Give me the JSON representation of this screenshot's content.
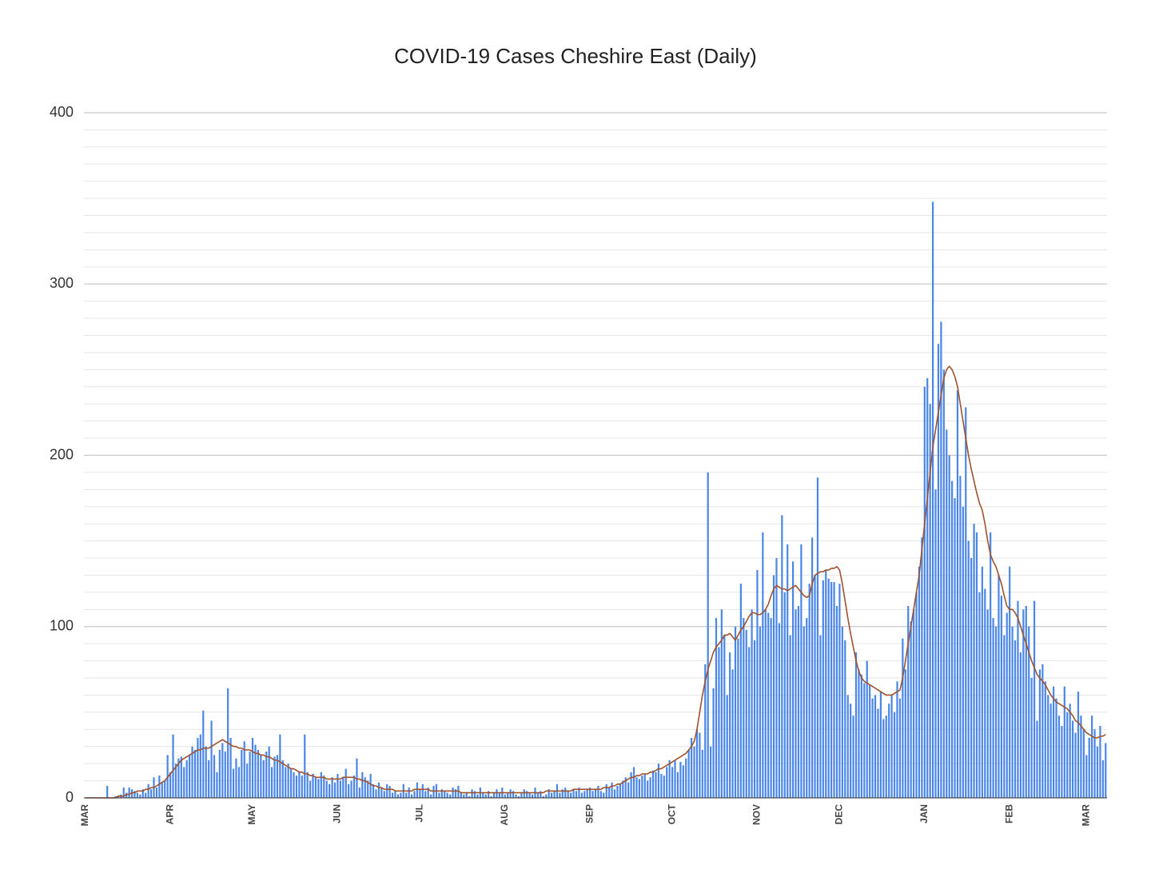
{
  "chart_data": {
    "type": "bar",
    "title": "COVID-19 Cases Cheshire East (Daily)",
    "categories": [
      "MAR",
      null,
      null,
      null,
      null,
      null,
      null,
      null,
      null,
      null,
      null,
      null,
      null,
      null,
      null,
      null,
      null,
      null,
      null,
      null,
      null,
      null,
      null,
      null,
      null,
      null,
      null,
      null,
      null,
      null,
      null,
      "APR",
      null,
      null,
      null,
      null,
      null,
      null,
      null,
      null,
      null,
      null,
      null,
      null,
      null,
      null,
      null,
      null,
      null,
      null,
      null,
      null,
      null,
      null,
      null,
      null,
      null,
      null,
      null,
      null,
      null,
      "MAY",
      null,
      null,
      null,
      null,
      null,
      null,
      null,
      null,
      null,
      null,
      null,
      null,
      null,
      null,
      null,
      null,
      null,
      null,
      null,
      null,
      null,
      null,
      null,
      null,
      null,
      null,
      null,
      null,
      null,
      null,
      "JUN",
      null,
      null,
      null,
      null,
      null,
      null,
      null,
      null,
      null,
      null,
      null,
      null,
      null,
      null,
      null,
      null,
      null,
      null,
      null,
      null,
      null,
      null,
      null,
      null,
      null,
      null,
      null,
      null,
      null,
      "JUL",
      null,
      null,
      null,
      null,
      null,
      null,
      null,
      null,
      null,
      null,
      null,
      null,
      null,
      null,
      null,
      null,
      null,
      null,
      null,
      null,
      null,
      null,
      null,
      null,
      null,
      null,
      null,
      null,
      null,
      null,
      "AUG",
      null,
      null,
      null,
      null,
      null,
      null,
      null,
      null,
      null,
      null,
      null,
      null,
      null,
      null,
      null,
      null,
      null,
      null,
      null,
      null,
      null,
      null,
      null,
      null,
      null,
      null,
      null,
      null,
      null,
      null,
      "SEP",
      null,
      null,
      null,
      null,
      null,
      null,
      null,
      null,
      null,
      null,
      null,
      null,
      null,
      null,
      null,
      null,
      null,
      null,
      null,
      null,
      null,
      null,
      null,
      null,
      null,
      null,
      null,
      null,
      null,
      "OCT",
      null,
      null,
      null,
      null,
      null,
      null,
      null,
      null,
      null,
      null,
      null,
      null,
      null,
      null,
      null,
      null,
      null,
      null,
      null,
      null,
      null,
      null,
      null,
      null,
      null,
      null,
      null,
      null,
      null,
      null,
      "NOV",
      null,
      null,
      null,
      null,
      null,
      null,
      null,
      null,
      null,
      null,
      null,
      null,
      null,
      null,
      null,
      null,
      null,
      null,
      null,
      null,
      null,
      null,
      null,
      null,
      null,
      null,
      null,
      null,
      null,
      "DEC",
      null,
      null,
      null,
      null,
      null,
      null,
      null,
      null,
      null,
      null,
      null,
      null,
      null,
      null,
      null,
      null,
      null,
      null,
      null,
      null,
      null,
      null,
      null,
      null,
      null,
      null,
      null,
      null,
      null,
      null,
      "JAN",
      null,
      null,
      null,
      null,
      null,
      null,
      null,
      null,
      null,
      null,
      null,
      null,
      null,
      null,
      null,
      null,
      null,
      null,
      null,
      null,
      null,
      null,
      null,
      null,
      null,
      null,
      null,
      null,
      null,
      null,
      "FEB",
      null,
      null,
      null,
      null,
      null,
      null,
      null,
      null,
      null,
      null,
      null,
      null,
      null,
      null,
      null,
      null,
      null,
      null,
      null,
      null,
      null,
      null,
      null,
      null,
      null,
      null,
      null,
      "MAR",
      null,
      null,
      null,
      null,
      null,
      null,
      null
    ],
    "series": [
      {
        "type": "bar",
        "color": "#4a86e8",
        "values": [
          0,
          0,
          0,
          0,
          0,
          0,
          0,
          0,
          7,
          0,
          0,
          1,
          1,
          2,
          6,
          3,
          6,
          5,
          4,
          3,
          2,
          5,
          3,
          8,
          5,
          12,
          6,
          13,
          9,
          10,
          25,
          15,
          37,
          20,
          23,
          24,
          18,
          22,
          25,
          30,
          28,
          35,
          37,
          51,
          30,
          22,
          45,
          25,
          15,
          28,
          32,
          27,
          64,
          35,
          17,
          23,
          18,
          28,
          33,
          20,
          27,
          35,
          31,
          28,
          25,
          22,
          27,
          30,
          18,
          24,
          25,
          37,
          22,
          18,
          20,
          17,
          15,
          13,
          15,
          13,
          37,
          15,
          10,
          14,
          12,
          11,
          15,
          13,
          10,
          8,
          12,
          9,
          14,
          10,
          12,
          17,
          8,
          10,
          13,
          23,
          6,
          15,
          12,
          10,
          14,
          8,
          5,
          9,
          6,
          4,
          8,
          7,
          3,
          4,
          2,
          3,
          8,
          3,
          6,
          2,
          4,
          9,
          5,
          8,
          4,
          6,
          2,
          7,
          8,
          3,
          5,
          4,
          3,
          2,
          6,
          5,
          7,
          3,
          2,
          3,
          1,
          5,
          4,
          2,
          6,
          3,
          2,
          4,
          1,
          3,
          5,
          3,
          6,
          2,
          3,
          5,
          4,
          2,
          1,
          3,
          5,
          4,
          3,
          2,
          6,
          3,
          4,
          1,
          2,
          5,
          3,
          4,
          8,
          3,
          5,
          6,
          4,
          3,
          5,
          4,
          6,
          3,
          4,
          5,
          6,
          4,
          5,
          7,
          4,
          3,
          8,
          6,
          9,
          5,
          7,
          8,
          10,
          12,
          9,
          15,
          18,
          12,
          11,
          13,
          14,
          10,
          12,
          16,
          15,
          20,
          14,
          13,
          18,
          22,
          18,
          22,
          15,
          21,
          19,
          23,
          28,
          35,
          30,
          40,
          38,
          28,
          78,
          190,
          30,
          64,
          105,
          88,
          110,
          95,
          60,
          85,
          75,
          100,
          93,
          125,
          105,
          98,
          88,
          110,
          92,
          133,
          100,
          155,
          110,
          108,
          105,
          130,
          140,
          102,
          165,
          120,
          148,
          95,
          138,
          110,
          112,
          148,
          100,
          105,
          125,
          152,
          130,
          187,
          95,
          127,
          133,
          128,
          126,
          126,
          112,
          125,
          100,
          92,
          60,
          55,
          48,
          85,
          75,
          72,
          67,
          80,
          66,
          58,
          60,
          52,
          62,
          46,
          48,
          55,
          60,
          50,
          68,
          58,
          93,
          75,
          112,
          103,
          110,
          120,
          135,
          152,
          240,
          245,
          230,
          348,
          180,
          265,
          278,
          250,
          215,
          200,
          185,
          175,
          238,
          188,
          170,
          228,
          150,
          140,
          160,
          155,
          120,
          135,
          122,
          110,
          155,
          105,
          100,
          130,
          118,
          95,
          108,
          135,
          100,
          92,
          115,
          85,
          110,
          112,
          100,
          70,
          115,
          45,
          75,
          78,
          68,
          60,
          55,
          65,
          58,
          48,
          42,
          65,
          50,
          55,
          45,
          38,
          62,
          48,
          40,
          25,
          35,
          48,
          40,
          30,
          42,
          22,
          32
        ]
      },
      {
        "type": "line",
        "color": "#a0522d",
        "values": [
          0,
          0,
          0,
          0,
          0,
          0,
          0,
          0,
          0,
          0,
          0,
          0,
          1,
          1,
          1,
          2,
          2,
          3,
          3,
          4,
          4,
          4,
          5,
          5,
          6,
          6,
          7,
          8,
          9,
          10,
          12,
          14,
          16,
          18,
          20,
          22,
          23,
          24,
          25,
          26,
          27,
          28,
          28,
          29,
          29,
          29,
          30,
          31,
          32,
          33,
          34,
          33,
          32,
          31,
          30,
          30,
          29,
          29,
          28,
          28,
          28,
          27,
          26,
          26,
          25,
          25,
          24,
          24,
          23,
          22,
          22,
          21,
          20,
          19,
          18,
          17,
          17,
          16,
          15,
          15,
          14,
          14,
          13,
          13,
          12,
          12,
          12,
          12,
          11,
          11,
          11,
          11,
          11,
          11,
          12,
          12,
          12,
          12,
          12,
          11,
          11,
          10,
          10,
          9,
          8,
          7,
          7,
          6,
          6,
          5,
          5,
          5,
          5,
          4,
          4,
          4,
          4,
          4,
          4,
          4,
          5,
          5,
          5,
          5,
          5,
          5,
          4,
          4,
          4,
          4,
          4,
          4,
          4,
          4,
          4,
          4,
          4,
          3,
          3,
          3,
          3,
          3,
          3,
          3,
          3,
          3,
          3,
          3,
          3,
          3,
          3,
          3,
          3,
          3,
          3,
          3,
          3,
          3,
          3,
          3,
          3,
          3,
          3,
          3,
          3,
          3,
          3,
          3,
          4,
          4,
          4,
          4,
          4,
          4,
          4,
          4,
          4,
          4,
          5,
          5,
          5,
          5,
          5,
          5,
          5,
          5,
          5,
          5,
          5,
          6,
          6,
          6,
          7,
          7,
          8,
          8,
          9,
          10,
          11,
          12,
          12,
          13,
          13,
          14,
          14,
          14,
          15,
          15,
          16,
          17,
          17,
          18,
          19,
          20,
          21,
          22,
          23,
          24,
          25,
          26,
          28,
          30,
          33,
          40,
          50,
          60,
          68,
          75,
          80,
          85,
          88,
          90,
          92,
          95,
          95,
          96,
          94,
          92,
          95,
          98,
          100,
          103,
          106,
          108,
          108,
          107,
          107,
          108,
          110,
          113,
          118,
          122,
          124,
          123,
          122,
          122,
          121,
          122,
          123,
          124,
          122,
          120,
          118,
          117,
          118,
          125,
          130,
          131,
          132,
          132,
          133,
          133,
          134,
          134,
          135,
          133,
          125,
          115,
          105,
          96,
          88,
          80,
          74,
          70,
          68,
          67,
          66,
          65,
          64,
          63,
          62,
          61,
          60,
          60,
          60,
          61,
          62,
          63,
          70,
          80,
          90,
          100,
          110,
          120,
          130,
          145,
          160,
          175,
          190,
          205,
          215,
          225,
          235,
          245,
          250,
          252,
          250,
          246,
          240,
          230,
          220,
          210,
          200,
          192,
          185,
          178,
          172,
          168,
          160,
          150,
          142,
          138,
          135,
          130,
          125,
          118,
          112,
          110,
          110,
          108,
          105,
          100,
          95,
          90,
          85,
          80,
          76,
          72,
          70,
          68,
          66,
          63,
          60,
          58,
          56,
          55,
          54,
          53,
          52,
          50,
          48,
          45,
          44,
          42,
          40,
          38,
          37,
          36,
          35,
          35,
          36,
          36,
          37
        ]
      }
    ],
    "ylim": [
      0,
      400
    ],
    "yticks": [
      0,
      100,
      200,
      300,
      400
    ],
    "minor_yticks": [
      10,
      20,
      30,
      40,
      50,
      60,
      70,
      80,
      90,
      110,
      120,
      130,
      140,
      150,
      160,
      170,
      180,
      190,
      210,
      220,
      230,
      240,
      250,
      260,
      270,
      280,
      290,
      310,
      320,
      330,
      340,
      350,
      360,
      370,
      380,
      390
    ],
    "grid": true
  }
}
